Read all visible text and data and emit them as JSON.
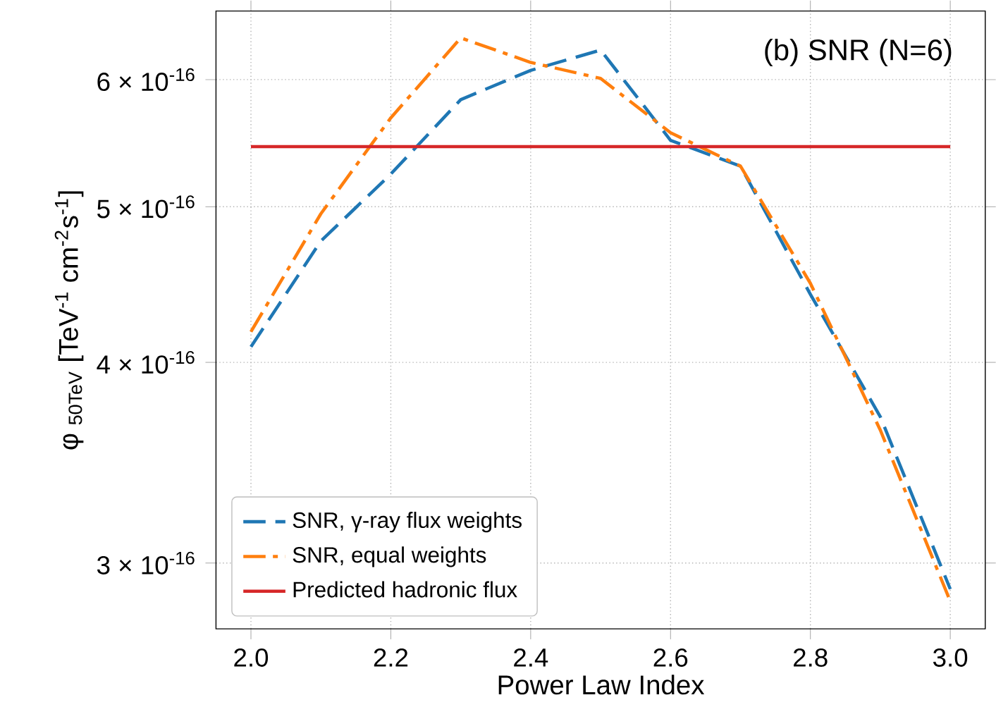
{
  "chart_data": {
    "type": "line",
    "xlabel": "Power Law Index",
    "ylabel": "φ $_{50TeV}$ [TeV$^{-1}$ cm$^{-2}$s$^{-1}$]",
    "x": [
      2.0,
      2.1,
      2.2,
      2.3,
      2.4,
      2.5,
      2.6,
      2.7,
      2.8,
      2.9,
      3.0
    ],
    "series": [
      {
        "name": "SNR, γ-ray flux weights",
        "color": "#1f77b4",
        "line_style": "dashed",
        "values": [
          4.09e-16,
          4.76e-16,
          5.24e-16,
          5.83e-16,
          6.08e-16,
          6.26e-16,
          5.5e-16,
          5.3e-16,
          4.41e-16,
          3.7e-16,
          2.89e-16
        ]
      },
      {
        "name": "SNR, equal weights",
        "color": "#ff7f0e",
        "line_style": "dashdot",
        "values": [
          4.18e-16,
          4.95e-16,
          5.68e-16,
          6.37e-16,
          6.15e-16,
          6.01e-16,
          5.56e-16,
          5.3e-16,
          4.48e-16,
          3.63e-16,
          2.84e-16
        ]
      },
      {
        "name": "Predicted hadronic flux",
        "color": "#d62728",
        "line_style": "solid",
        "x": [
          2.0,
          3.0
        ],
        "values": [
          5.45e-16,
          5.45e-16
        ]
      }
    ],
    "annotations": [
      "(b) SNR (N=6)"
    ],
    "log": "y",
    "grid": true,
    "legend": "bottom left",
    "xlim": [
      1.95,
      3.05
    ],
    "ylim": [
      2.73e-16,
      6.62e-16
    ],
    "xticks": [
      {
        "value": 2.0,
        "label": "2.0"
      },
      {
        "value": 2.2,
        "label": "2.2"
      },
      {
        "value": 2.4,
        "label": "2.4"
      },
      {
        "value": 2.6,
        "label": "2.6"
      },
      {
        "value": 2.8,
        "label": "2.8"
      },
      {
        "value": 3.0,
        "label": "3.0"
      }
    ],
    "yticks": [
      {
        "value": 3e-16,
        "label": "3 × 10$^{-16}$"
      },
      {
        "value": 4e-16,
        "label": "4 × 10$^{-16}$"
      },
      {
        "value": 5e-16,
        "label": "5 × 10$^{-16}$"
      },
      {
        "value": 6e-16,
        "label": "6 × 10$^{-16}$"
      }
    ]
  }
}
